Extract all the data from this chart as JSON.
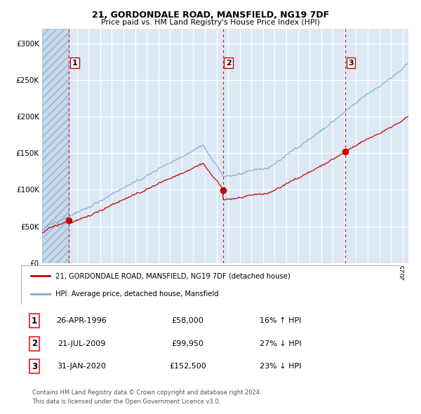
{
  "title1": "21, GORDONDALE ROAD, MANSFIELD, NG19 7DF",
  "title2": "Price paid vs. HM Land Registry's House Price Index (HPI)",
  "background_color": "#dce9f5",
  "red_line_color": "#cc0000",
  "blue_line_color": "#7bafd4",
  "sale1_date": 1996.32,
  "sale1_price": 58000,
  "sale1_label": "26-APR-1996",
  "sale1_price_str": "£58,000",
  "sale1_hpi": "16% ↑ HPI",
  "sale2_date": 2009.55,
  "sale2_price": 99950,
  "sale2_label": "21-JUL-2009",
  "sale2_price_str": "£99,950",
  "sale2_hpi": "27% ↓ HPI",
  "sale3_date": 2020.08,
  "sale3_price": 152500,
  "sale3_label": "31-JAN-2020",
  "sale3_price_str": "£152,500",
  "sale3_hpi": "23% ↓ HPI",
  "legend_red": "21, GORDONDALE ROAD, MANSFIELD, NG19 7DF (detached house)",
  "legend_blue": "HPI: Average price, detached house, Mansfield",
  "footer1": "Contains HM Land Registry data © Crown copyright and database right 2024.",
  "footer2": "This data is licensed under the Open Government Licence v3.0.",
  "ylim_max": 320000,
  "xmin": 1994.0,
  "xmax": 2025.5
}
